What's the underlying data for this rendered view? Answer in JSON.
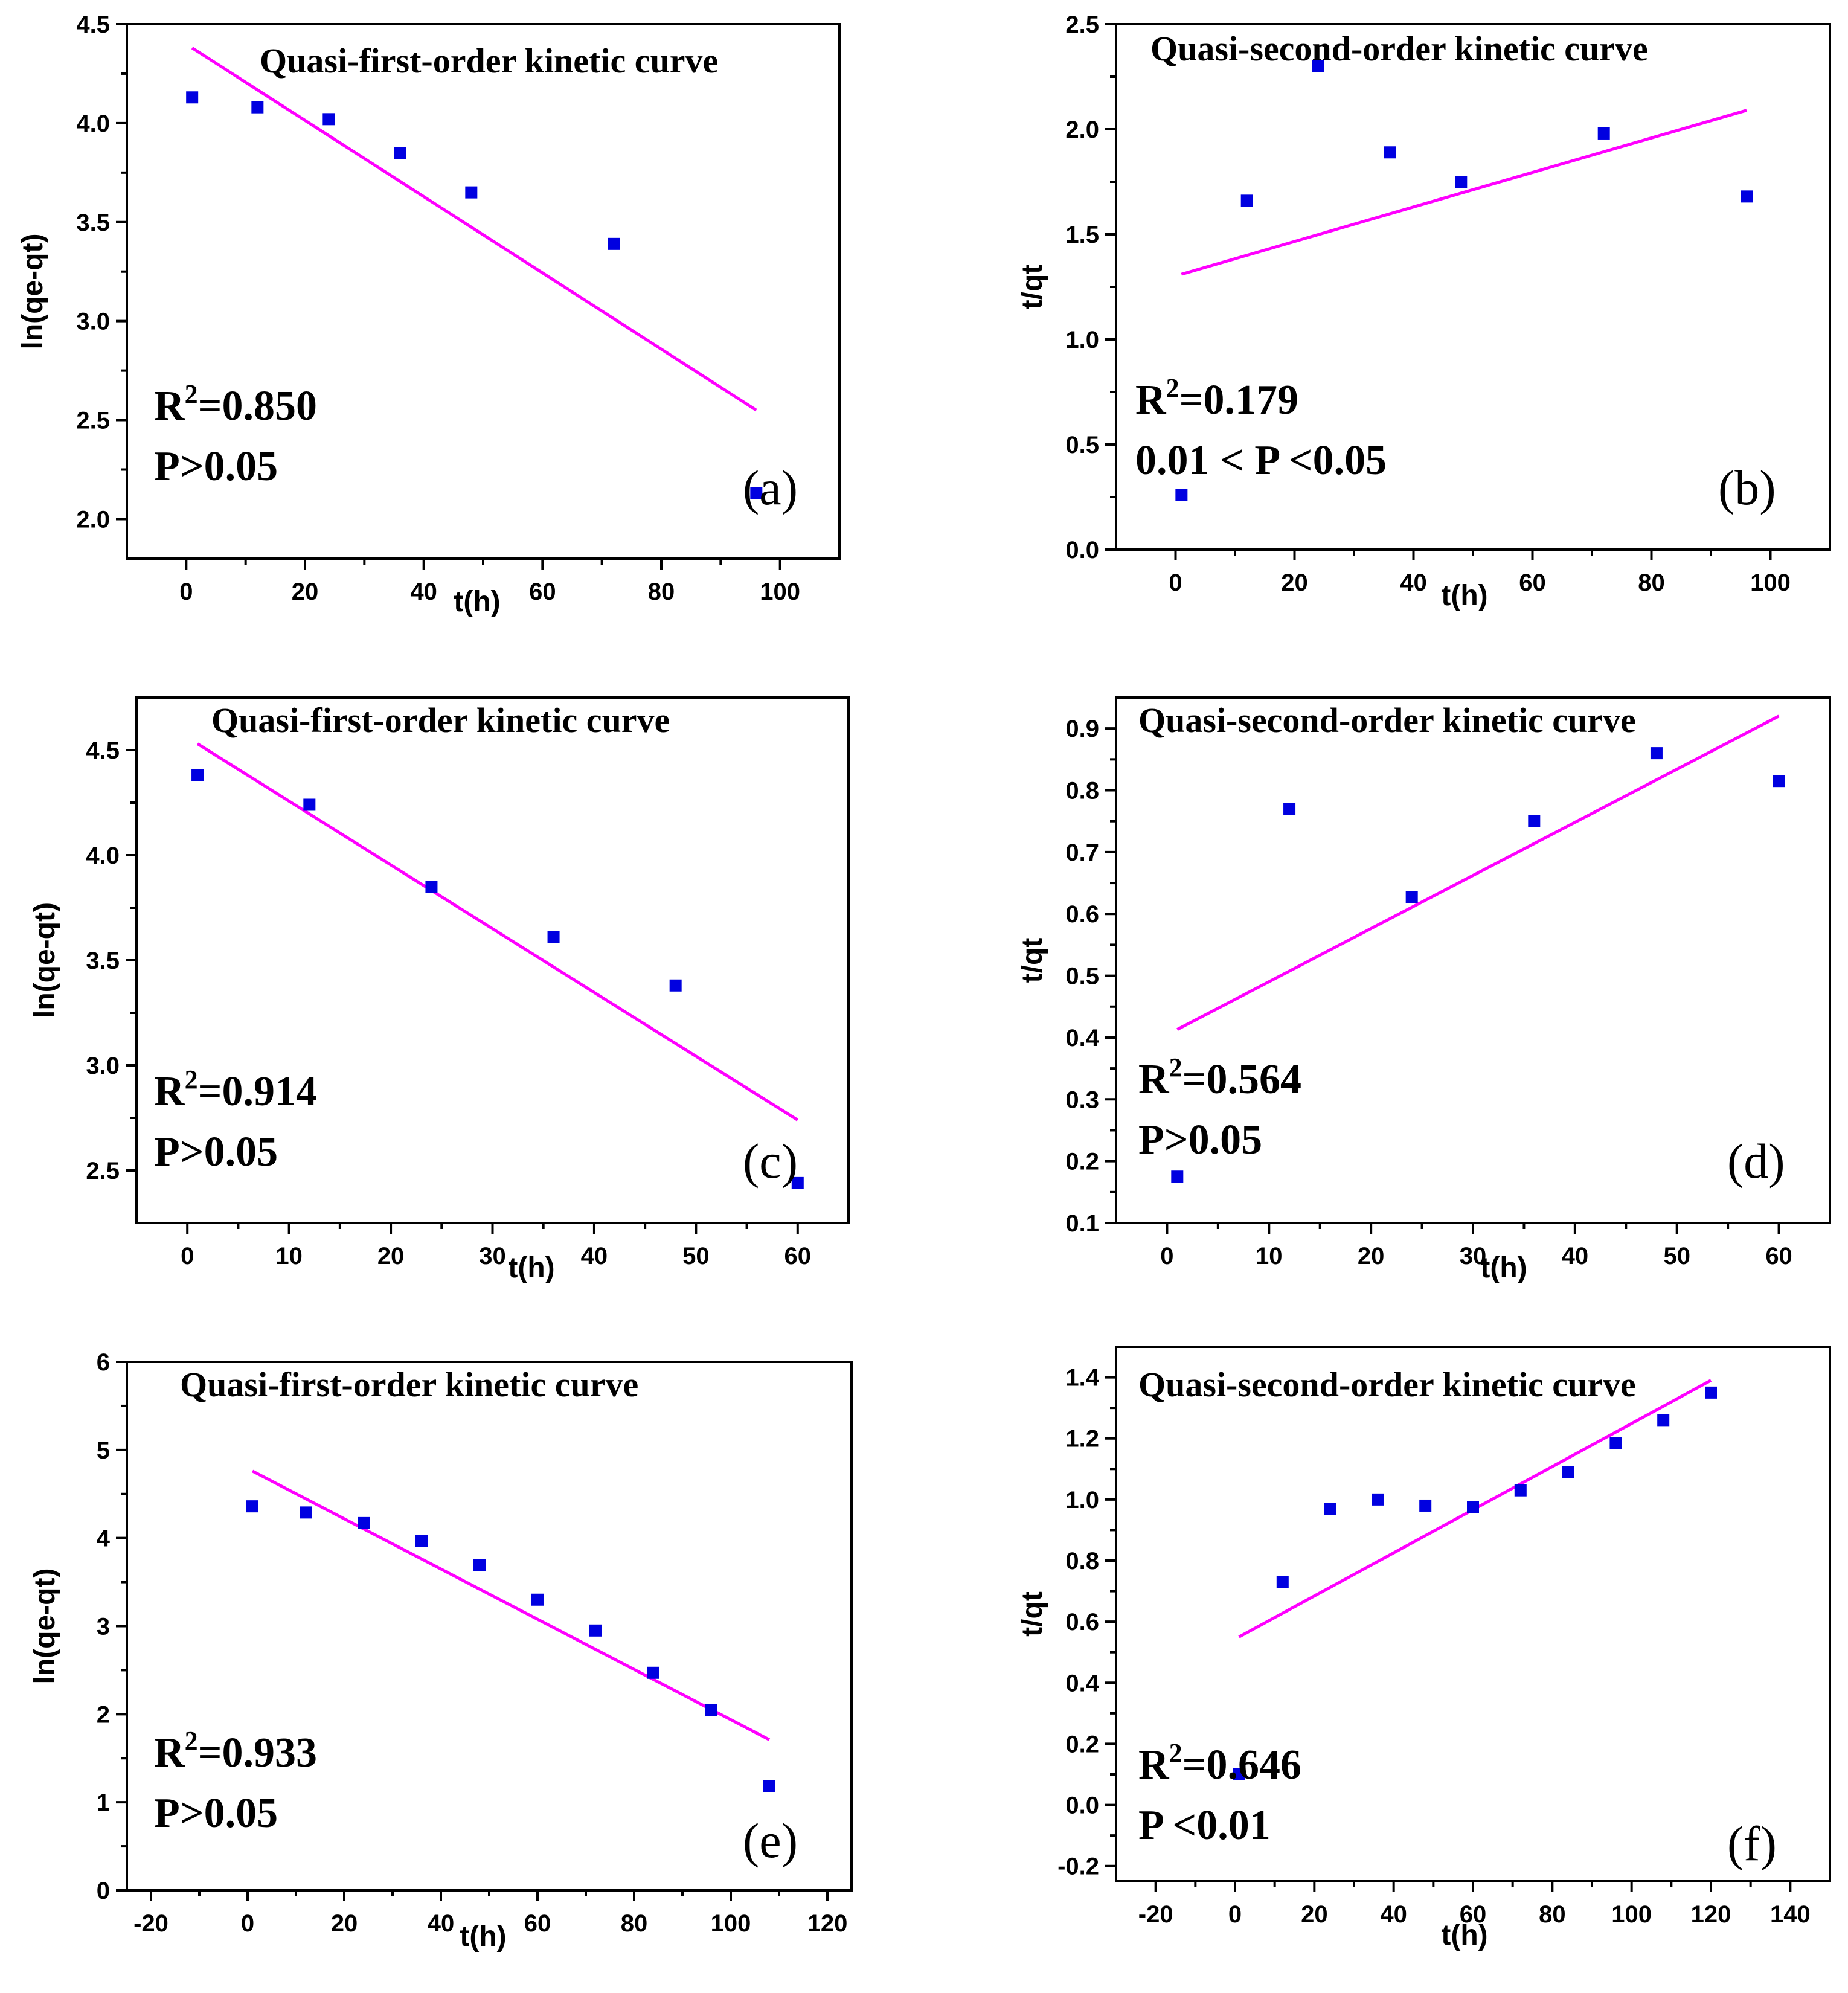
{
  "colors": {
    "points": "#0000e0",
    "fit_line": "#ff00ff",
    "axis": "#000000"
  },
  "chart_data": [
    {
      "id": "a",
      "type": "scatter",
      "panel_label": "(a)",
      "title": "Quasi-first-order kinetic curve",
      "xlabel": "t(h)",
      "ylabel": "ln(qe-qt)",
      "xlim": [
        -10,
        110
      ],
      "ylim": [
        1.8,
        4.5
      ],
      "xticks": [
        0,
        20,
        40,
        60,
        80,
        100
      ],
      "yticks": [
        2.0,
        2.5,
        3.0,
        3.5,
        4.0,
        4.5
      ],
      "ytick_decimals": 1,
      "x": [
        1,
        12,
        24,
        36,
        48,
        72,
        96
      ],
      "y": [
        4.13,
        4.08,
        4.02,
        3.85,
        3.65,
        3.39,
        2.13
      ],
      "fit": {
        "x": [
          1,
          96
        ],
        "y": [
          4.38,
          2.55
        ]
      },
      "r2_label": "R",
      "r2_sup": "2",
      "r2_value": "=0.850",
      "p_text": "P>0.05"
    },
    {
      "id": "b",
      "type": "scatter",
      "panel_label": "(b)",
      "title": "Quasi-second-order kinetic curve",
      "xlabel": "t(h)",
      "ylabel": "t/qt",
      "xlim": [
        -10,
        110
      ],
      "ylim": [
        0.0,
        2.5
      ],
      "xticks": [
        0,
        20,
        40,
        60,
        80,
        100
      ],
      "yticks": [
        0.0,
        0.5,
        1.0,
        1.5,
        2.0,
        2.5
      ],
      "ytick_decimals": 1,
      "x": [
        1,
        12,
        24,
        36,
        48,
        72,
        96
      ],
      "y": [
        0.26,
        1.66,
        2.3,
        1.89,
        1.75,
        1.98,
        1.68
      ],
      "fit": {
        "x": [
          1,
          96
        ],
        "y": [
          1.31,
          2.09
        ]
      },
      "r2_label": "R",
      "r2_sup": "2",
      "r2_value": "=0.179",
      "p_text": "0.01 < P <0.05"
    },
    {
      "id": "c",
      "type": "scatter",
      "panel_label": "(c)",
      "title": "Quasi-first-order kinetic curve",
      "xlabel": "t(h)",
      "ylabel": "ln(qe-qt)",
      "xlim": [
        -5,
        65
      ],
      "ylim": [
        2.25,
        4.75
      ],
      "xticks": [
        0,
        10,
        20,
        30,
        40,
        50,
        60
      ],
      "yticks": [
        2.5,
        3.0,
        3.5,
        4.0,
        4.5
      ],
      "ytick_decimals": 1,
      "x": [
        1,
        12,
        24,
        36,
        48,
        60
      ],
      "y": [
        4.38,
        4.24,
        3.85,
        3.61,
        3.38,
        2.44
      ],
      "fit": {
        "x": [
          1,
          60
        ],
        "y": [
          4.53,
          2.74
        ]
      },
      "r2_label": "R",
      "r2_sup": "2",
      "r2_value": "=0.914",
      "p_text": "P>0.05"
    },
    {
      "id": "d",
      "type": "scatter",
      "panel_label": "(d)",
      "title": "Quasi-second-order kinetic curve",
      "xlabel": "t(h)",
      "ylabel": "t/qt",
      "xlim": [
        -5,
        65
      ],
      "ylim": [
        0.1,
        0.95
      ],
      "xticks": [
        0,
        10,
        20,
        30,
        40,
        50,
        60
      ],
      "yticks": [
        0.1,
        0.2,
        0.3,
        0.4,
        0.5,
        0.6,
        0.7,
        0.8,
        0.9
      ],
      "ytick_decimals": 1,
      "x": [
        1,
        12,
        24,
        36,
        48,
        60
      ],
      "y": [
        0.175,
        0.77,
        0.627,
        0.75,
        0.86,
        0.815
      ],
      "fit": {
        "x": [
          1,
          60
        ],
        "y": [
          0.413,
          0.92
        ]
      },
      "r2_label": "R",
      "r2_sup": "2",
      "r2_value": "=0.564",
      "p_text": "P>0.05"
    },
    {
      "id": "e",
      "type": "scatter",
      "panel_label": "(e)",
      "title": "Quasi-first-order kinetic curve",
      "xlabel": "t(h)",
      "ylabel": "ln(qe-qt)",
      "xlim": [
        -25,
        125
      ],
      "ylim": [
        0,
        6
      ],
      "xticks": [
        -20,
        0,
        20,
        40,
        60,
        80,
        100,
        120
      ],
      "yticks": [
        0,
        1,
        2,
        3,
        4,
        5,
        6
      ],
      "ytick_decimals": 0,
      "x": [
        1,
        12,
        24,
        36,
        48,
        60,
        72,
        84,
        96,
        108
      ],
      "y": [
        4.36,
        4.29,
        4.17,
        3.97,
        3.69,
        3.3,
        2.95,
        2.47,
        2.05,
        1.18
      ],
      "fit": {
        "x": [
          1,
          108
        ],
        "y": [
          4.76,
          1.71
        ]
      },
      "r2_label": "R",
      "r2_sup": "2",
      "r2_value": "=0.933",
      "p_text": "P>0.05"
    },
    {
      "id": "f",
      "type": "scatter",
      "panel_label": "(f)",
      "title": "Quasi-second-order kinetic curve",
      "xlabel": "t(h)",
      "ylabel": "t/qt",
      "xlim": [
        -30,
        150
      ],
      "ylim": [
        -0.25,
        1.5
      ],
      "xticks": [
        -20,
        0,
        20,
        40,
        60,
        80,
        100,
        120,
        140
      ],
      "yticks": [
        -0.2,
        0.0,
        0.2,
        0.4,
        0.6,
        0.8,
        1.0,
        1.2,
        1.4
      ],
      "ytick_decimals": 1,
      "x": [
        1,
        12,
        24,
        36,
        48,
        60,
        72,
        84,
        96,
        108,
        120
      ],
      "y": [
        0.1,
        0.73,
        0.97,
        1.0,
        0.98,
        0.975,
        1.03,
        1.09,
        1.185,
        1.26,
        1.35
      ],
      "fit": {
        "x": [
          1,
          120
        ],
        "y": [
          0.55,
          1.39
        ]
      },
      "r2_label": "R",
      "r2_sup": "2",
      "r2_value": "=0.646",
      "p_text": "P <0.01"
    }
  ]
}
